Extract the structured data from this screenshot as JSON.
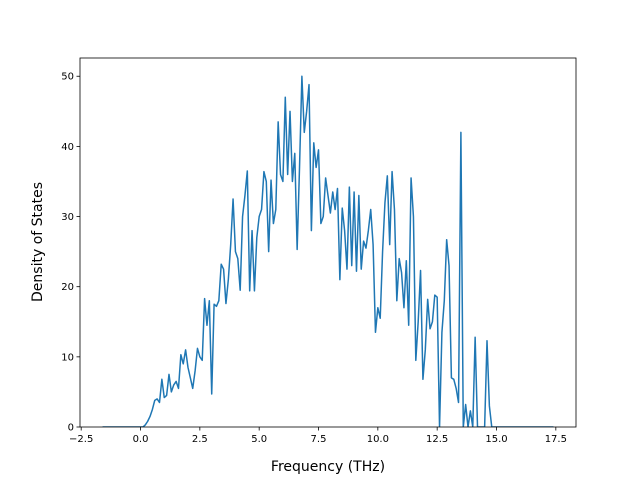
{
  "chart_data": {
    "type": "line",
    "xlabel": "Frequency (THz)",
    "ylabel": "Density of States",
    "xlim": [
      -2.55,
      18.35
    ],
    "ylim": [
      0,
      52.6
    ],
    "xticks": [
      {
        "value": -2.5,
        "label": "−2.5"
      },
      {
        "value": 0,
        "label": "0.0"
      },
      2.5,
      {
        "value": 5,
        "label": "5.0"
      },
      7.5,
      {
        "value": 10,
        "label": "10.0"
      },
      12.5,
      {
        "value": 15,
        "label": "15.0"
      },
      17.5
    ],
    "yticks": [
      0,
      10,
      20,
      30,
      40,
      50
    ],
    "grid": false,
    "series": [
      {
        "color": "#1f77b4",
        "x": [
          -1.6,
          0.1,
          0.2,
          0.3,
          0.4,
          0.5,
          0.6,
          0.7,
          0.8,
          0.9,
          1.0,
          1.1,
          1.2,
          1.3,
          1.4,
          1.5,
          1.6,
          1.7,
          1.8,
          1.9,
          2.0,
          2.1,
          2.2,
          2.3,
          2.4,
          2.5,
          2.6,
          2.7,
          2.8,
          2.9,
          3.0,
          3.1,
          3.2,
          3.3,
          3.4,
          3.5,
          3.6,
          3.7,
          3.8,
          3.9,
          4.0,
          4.1,
          4.2,
          4.3,
          4.4,
          4.5,
          4.6,
          4.7,
          4.8,
          4.9,
          5.0,
          5.1,
          5.2,
          5.3,
          5.4,
          5.5,
          5.6,
          5.7,
          5.8,
          5.9,
          6.0,
          6.1,
          6.2,
          6.3,
          6.4,
          6.5,
          6.6,
          6.7,
          6.8,
          6.9,
          7.0,
          7.1,
          7.2,
          7.3,
          7.4,
          7.5,
          7.6,
          7.7,
          7.8,
          7.9,
          8.0,
          8.1,
          8.2,
          8.3,
          8.4,
          8.5,
          8.6,
          8.7,
          8.8,
          8.9,
          9.0,
          9.1,
          9.2,
          9.3,
          9.4,
          9.5,
          9.6,
          9.7,
          9.8,
          9.9,
          10.0,
          10.1,
          10.2,
          10.3,
          10.4,
          10.5,
          10.6,
          10.7,
          10.8,
          10.9,
          11.0,
          11.1,
          11.2,
          11.3,
          11.4,
          11.5,
          11.6,
          11.7,
          11.8,
          11.9,
          12.0,
          12.1,
          12.2,
          12.3,
          12.4,
          12.5,
          12.6,
          12.7,
          12.8,
          12.9,
          13.0,
          13.1,
          13.2,
          13.3,
          13.4,
          13.5,
          13.6,
          13.7,
          13.8,
          13.9,
          14.0,
          14.1,
          14.2,
          14.3,
          14.4,
          14.5,
          14.6,
          14.7,
          14.8,
          17.4
        ],
        "values": [
          0,
          0,
          0.3,
          0.8,
          1.5,
          2.5,
          3.8,
          4,
          3.5,
          6.8,
          4.2,
          4.5,
          7.5,
          5,
          6,
          6.5,
          5.5,
          10.3,
          9,
          11,
          8.5,
          7,
          5.5,
          8,
          11.2,
          10,
          9.5,
          18.3,
          14.5,
          18,
          4.7,
          17.5,
          17.2,
          18,
          23.2,
          22.5,
          17.6,
          21,
          26,
          32.5,
          25,
          24,
          19.5,
          30,
          33,
          36.5,
          19.4,
          28,
          19.4,
          27,
          30,
          31,
          36.4,
          35,
          25,
          35.2,
          29,
          31,
          43.5,
          36,
          35,
          47,
          36,
          45,
          35,
          39,
          25.3,
          37,
          50,
          42,
          45,
          48.8,
          28,
          40.5,
          37,
          39.5,
          29,
          30,
          35.5,
          33,
          30.5,
          33.5,
          31,
          34,
          21,
          31.2,
          28,
          22.5,
          34.2,
          23,
          33.5,
          22.2,
          33,
          22.5,
          26.5,
          25.5,
          28,
          31,
          26,
          13.5,
          17,
          15.5,
          25,
          32,
          35.8,
          26,
          36.4,
          31,
          18,
          24,
          22,
          17,
          23.7,
          14.5,
          35.5,
          30,
          9.5,
          15,
          22.3,
          6.8,
          11,
          18.2,
          14,
          15,
          18.8,
          18.5,
          0,
          13.5,
          18,
          26.7,
          23,
          7,
          6.8,
          5.5,
          3.5,
          42,
          0,
          3.2,
          0,
          2.3,
          0,
          12.8,
          0,
          0,
          0,
          0,
          12.3,
          3,
          0,
          0
        ]
      }
    ]
  }
}
